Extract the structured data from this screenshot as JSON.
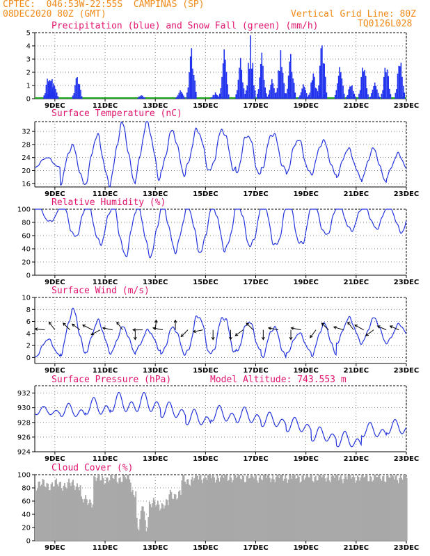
{
  "header": {
    "line1": "CPTEC:  046:53W-22:55S  CAMPINAS (SP)",
    "line2": "08DEC2020 80Z (GMT)",
    "vgrid": "Vertical Grid Line: 80Z",
    "code": "TQ0126L028"
  },
  "colors": {
    "header": "#f08a18",
    "title": "#e0146e",
    "line": "#2233dd",
    "precip": "#2233ee",
    "snow": "#22aa22",
    "cloud": "#a9a9a9"
  },
  "x_ticks": [
    "9DEC",
    "11DEC",
    "13DEC",
    "15DEC",
    "17DEC",
    "19DEC",
    "21DEC",
    "23DEC"
  ],
  "chart_data": [
    {
      "id": "precip",
      "type": "bar",
      "title": "Precipitation (blue) and Snow Fall (green) (mm/h)",
      "ylim": [
        0,
        5
      ],
      "yticks": [
        0,
        1,
        2,
        3,
        4,
        5
      ],
      "x_start_day": 8.2,
      "x_end_day": 23.0,
      "peaks": [
        {
          "day": 8.75,
          "v": 2.0
        },
        {
          "day": 8.85,
          "v": 1.9
        },
        {
          "day": 8.95,
          "v": 1.5
        },
        {
          "day": 9.9,
          "v": 2.0
        },
        {
          "day": 12.45,
          "v": 0.3
        },
        {
          "day": 14.0,
          "v": 0.7
        },
        {
          "day": 14.45,
          "v": 4.1
        },
        {
          "day": 15.4,
          "v": 0.5
        },
        {
          "day": 15.75,
          "v": 3.8
        },
        {
          "day": 16.4,
          "v": 3.1
        },
        {
          "day": 16.8,
          "v": 4.8
        },
        {
          "day": 17.25,
          "v": 3.5
        },
        {
          "day": 17.65,
          "v": 1.5
        },
        {
          "day": 18.0,
          "v": 3.8
        },
        {
          "day": 18.4,
          "v": 3.6
        },
        {
          "day": 18.9,
          "v": 1.2
        },
        {
          "day": 19.3,
          "v": 2.2
        },
        {
          "day": 19.65,
          "v": 4.9
        },
        {
          "day": 20.35,
          "v": 3.1
        },
        {
          "day": 20.8,
          "v": 1.3
        },
        {
          "day": 21.3,
          "v": 3.1
        },
        {
          "day": 21.75,
          "v": 2.0
        },
        {
          "day": 22.2,
          "v": 3.1
        },
        {
          "day": 22.75,
          "v": 3.5
        }
      ]
    },
    {
      "id": "temp",
      "type": "line",
      "title": "Surface Temperature (nC)",
      "ylim": [
        15,
        35
      ],
      "yticks": [
        16,
        20,
        24,
        28,
        32
      ],
      "x_start_day": 8.2,
      "x_end_day": 23.0,
      "mins": [
        21.0,
        16.0,
        16.0,
        17.0,
        18.0,
        19.0,
        20.0,
        20.0,
        18.5,
        20.0,
        19.0,
        19.0,
        18.0,
        17.0,
        18.0
      ],
      "maxs": [
        24.0,
        27.5,
        30.5,
        34.0,
        34.5,
        32.0,
        32.5,
        32.5,
        31.0,
        31.5,
        29.5,
        29.0,
        26.5,
        26.5,
        25.0
      ]
    },
    {
      "id": "rh",
      "type": "line",
      "title": "Relative Humidity (%)",
      "ylim": [
        0,
        100
      ],
      "yticks": [
        0,
        20,
        40,
        60,
        80,
        100
      ],
      "x_start_day": 8.2,
      "x_end_day": 23.0,
      "mins": [
        75,
        52,
        42,
        25,
        25,
        32,
        30,
        33,
        38,
        38,
        40,
        55,
        62,
        65,
        60
      ],
      "maxs": [
        97,
        100,
        100,
        100,
        98,
        98,
        98,
        99,
        100,
        100,
        100,
        100,
        100,
        100,
        100
      ]
    },
    {
      "id": "wind",
      "type": "line",
      "title": "Surface Wind (m/s)",
      "ylim": [
        -1,
        10
      ],
      "yticks": [
        0,
        2,
        4,
        6,
        8,
        10
      ],
      "x_start_day": 8.2,
      "x_end_day": 23.0,
      "daily_max": [
        3.0,
        7.8,
        6.0,
        5.0,
        4.5,
        5.0,
        7.0,
        6.8,
        6.0,
        5.0,
        4.0,
        5.5,
        6.5,
        6.5,
        5.5
      ],
      "daily_min": [
        0.2,
        0.8,
        1.0,
        0.8,
        1.2,
        0.5,
        0.5,
        0.5,
        1.0,
        0.0,
        0.8,
        0.5,
        2.5,
        2.5,
        2.5
      ],
      "arrows": [
        {
          "day": 8.6,
          "u": -1,
          "v": 0.1
        },
        {
          "day": 9.0,
          "u": -0.6,
          "v": 0.8
        },
        {
          "day": 9.6,
          "u": -0.7,
          "v": 0.7
        },
        {
          "day": 10.0,
          "u": -0.8,
          "v": 0.6
        },
        {
          "day": 10.5,
          "u": -1,
          "v": 0.5
        },
        {
          "day": 10.8,
          "u": -0.9,
          "v": -0.5
        },
        {
          "day": 11.3,
          "u": -1,
          "v": 0.2
        },
        {
          "day": 11.7,
          "u": -0.6,
          "v": 0.8
        },
        {
          "day": 12.2,
          "u": 0,
          "v": -1
        },
        {
          "day": 12.5,
          "u": -1,
          "v": 0
        },
        {
          "day": 13.0,
          "u": 0.1,
          "v": 1
        },
        {
          "day": 13.3,
          "u": -1,
          "v": 0.2
        },
        {
          "day": 13.8,
          "u": 0,
          "v": 1
        },
        {
          "day": 14.3,
          "u": -0.7,
          "v": -0.7
        },
        {
          "day": 14.9,
          "u": -1,
          "v": -0.2
        },
        {
          "day": 15.3,
          "u": 0,
          "v": -1
        },
        {
          "day": 16.0,
          "u": 0,
          "v": -1
        },
        {
          "day": 16.5,
          "u": -0.8,
          "v": -0.6
        },
        {
          "day": 16.9,
          "u": -0.7,
          "v": 0.7
        },
        {
          "day": 17.3,
          "u": 0,
          "v": -1
        },
        {
          "day": 17.9,
          "u": -1,
          "v": 0.2
        },
        {
          "day": 18.4,
          "u": 0,
          "v": -1
        },
        {
          "day": 18.8,
          "u": -1,
          "v": 0.2
        },
        {
          "day": 19.4,
          "u": -0.6,
          "v": -0.8
        },
        {
          "day": 19.9,
          "u": -0.7,
          "v": 0.7
        },
        {
          "day": 20.5,
          "u": -1,
          "v": 0.3
        },
        {
          "day": 20.9,
          "u": -0.6,
          "v": 0.8
        },
        {
          "day": 21.3,
          "u": -0.9,
          "v": 0.5
        },
        {
          "day": 21.7,
          "u": -0.8,
          "v": -0.6
        },
        {
          "day": 22.2,
          "u": -0.9,
          "v": 0.4
        },
        {
          "day": 22.7,
          "u": -0.9,
          "v": 0.4
        }
      ]
    },
    {
      "id": "pres",
      "type": "line",
      "title": "Surface Pressure (hPa)",
      "subtitle": "Model Altitude: 743.553 m",
      "ylim": [
        924,
        933
      ],
      "yticks": [
        924,
        926,
        928,
        930,
        932
      ],
      "x_start_day": 8.2,
      "x_end_day": 23.0,
      "baseline": [
        929.5,
        929.5,
        930.0,
        930.5,
        930.5,
        929.5,
        928.5,
        929.0,
        928.8,
        928.2,
        927.5,
        926.2,
        925.5,
        926.8,
        927.2
      ],
      "amp": [
        0.7,
        1.1,
        1.4,
        1.6,
        1.6,
        1.3,
        1.3,
        1.3,
        1.3,
        1.2,
        1.2,
        1.2,
        1.3,
        1.2,
        1.2
      ]
    },
    {
      "id": "cloud",
      "type": "bar",
      "title": "Cloud Cover (%)",
      "ylim": [
        0,
        100
      ],
      "yticks": [
        0,
        20,
        40,
        60,
        80,
        100
      ],
      "x_start_day": 8.2,
      "x_end_day": 23.0,
      "segments": [
        {
          "from": 8.2,
          "to": 10.0,
          "base": 85
        },
        {
          "from": 10.0,
          "to": 10.5,
          "base": 60
        },
        {
          "from": 10.5,
          "to": 11.2,
          "base": 94
        },
        {
          "from": 11.2,
          "to": 12.0,
          "base": 95
        },
        {
          "from": 12.0,
          "to": 12.2,
          "base": 75
        },
        {
          "from": 12.2,
          "to": 12.7,
          "base": 8
        },
        {
          "from": 12.7,
          "to": 13.5,
          "base": 55
        },
        {
          "from": 13.5,
          "to": 14.0,
          "base": 70
        },
        {
          "from": 14.0,
          "to": 14.5,
          "base": 92
        },
        {
          "from": 14.5,
          "to": 23.0,
          "base": 97
        }
      ]
    }
  ]
}
